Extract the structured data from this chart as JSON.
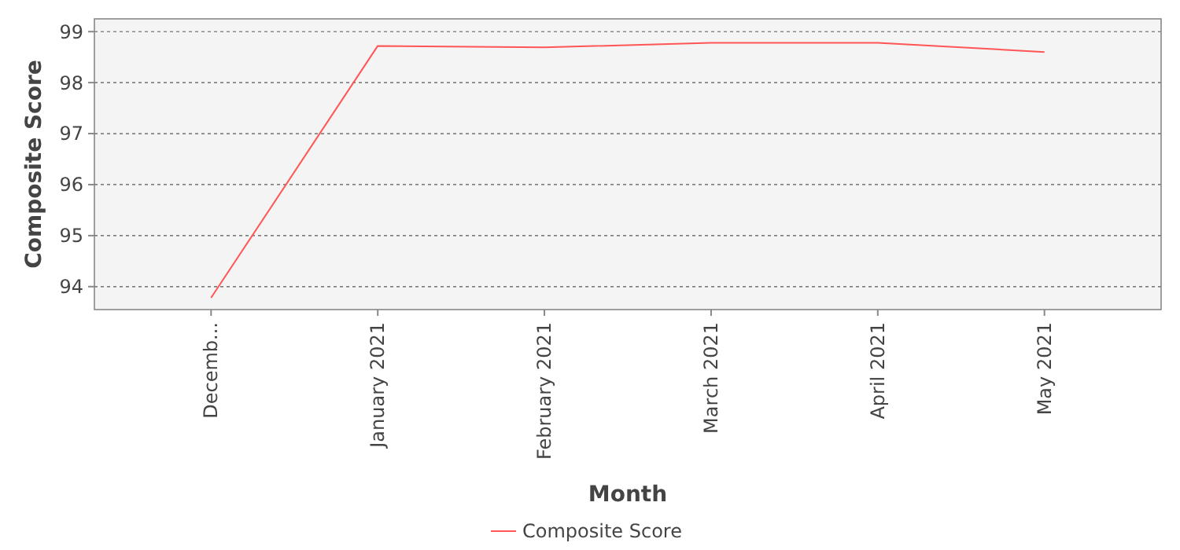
{
  "chart_data": {
    "type": "line",
    "xlabel": "Month",
    "ylabel": "Composite Score",
    "categories": [
      "Decemb...",
      "January 2021",
      "February 2021",
      "March 2021",
      "April 2021",
      "May 2021"
    ],
    "series": [
      {
        "name": "Composite Score",
        "color": "#ff5555",
        "values": [
          93.78,
          98.72,
          98.69,
          98.78,
          98.78,
          98.6
        ]
      }
    ],
    "ylim": [
      93.55,
      99.25
    ],
    "yticks": [
      94,
      95,
      96,
      97,
      98,
      99
    ],
    "grid": "y",
    "legend": "bottom",
    "marker": "none",
    "line_style": "solid"
  }
}
